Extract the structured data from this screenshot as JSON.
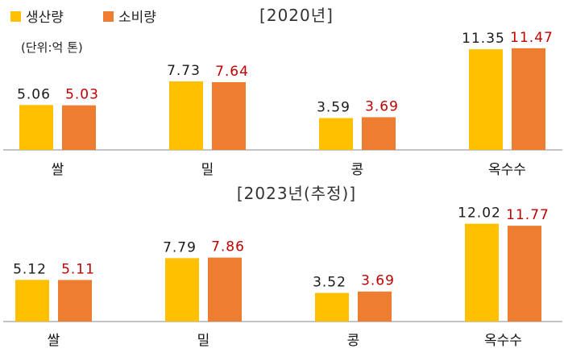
{
  "legend": {
    "production": "생산량",
    "consumption": "소비량"
  },
  "unit": "(단위:억 톤)",
  "colors": {
    "production": "#FFC000",
    "consumption": "#ED7D31",
    "consumption_label": "#C00000",
    "axis": "#888888"
  },
  "chart_data": [
    {
      "type": "bar",
      "title": "[2020년]",
      "categories": [
        "쌀",
        "밀",
        "콩",
        "옥수수"
      ],
      "series": [
        {
          "name": "생산량",
          "values": [
            5.06,
            7.73,
            3.59,
            11.35
          ],
          "labels": [
            "5.06",
            "7.73",
            "3.59",
            "11.35"
          ]
        },
        {
          "name": "소비량",
          "values": [
            5.03,
            7.64,
            3.69,
            11.47
          ],
          "labels": [
            "5.03",
            "7.64",
            "3.69",
            "11.47"
          ]
        }
      ],
      "ylim": [
        0,
        12.5
      ],
      "grid": false,
      "legend_position": "top-left"
    },
    {
      "type": "bar",
      "title": "[2023년(추정)]",
      "categories": [
        "쌀",
        "밀",
        "콩",
        "옥수수"
      ],
      "series": [
        {
          "name": "생산량",
          "values": [
            5.12,
            7.79,
            3.52,
            12.02
          ],
          "labels": [
            "5.12",
            "7.79",
            "3.52",
            "12.02"
          ]
        },
        {
          "name": "소비량",
          "values": [
            5.11,
            7.86,
            3.69,
            11.77
          ],
          "labels": [
            "5.11",
            "7.86",
            "3.69",
            "11.77"
          ]
        }
      ],
      "ylim": [
        0,
        12.5
      ],
      "grid": false
    }
  ]
}
